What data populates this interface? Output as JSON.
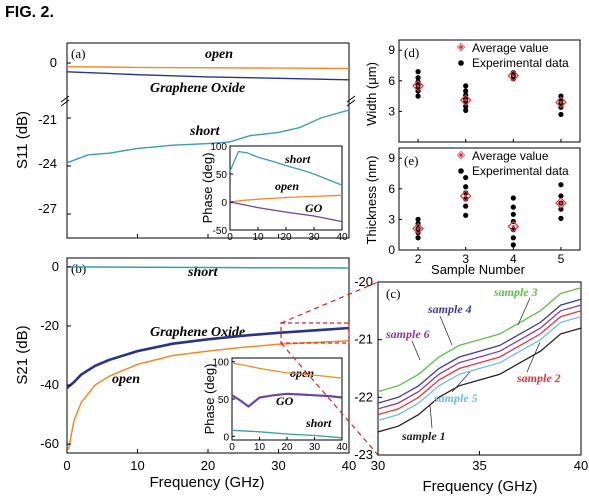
{
  "figure": {
    "title": "FIG. 2."
  },
  "colors": {
    "open": "#f28a2c",
    "graphene_oxide": "#2a3486",
    "short": "#3a9fa6",
    "go": "#6a44a6",
    "avg": "#e0383a",
    "exp": "#000000",
    "sample1": "#222222",
    "sample2": "#e0383a",
    "sample3": "#5cc04a",
    "sample4": "#3c3c9c",
    "sample5": "#6ac0dc",
    "sample6": "#8a3aa0",
    "zoom": "#e02020"
  },
  "chart_data": [
    {
      "id": "a",
      "panel_label": "(a)",
      "type": "line",
      "xlabel": "",
      "ylabel": "S11 (dB)",
      "xlim": [
        0,
        40
      ],
      "y_break": true,
      "y_ticks": [
        "0",
        "-21",
        "-24",
        "-27"
      ],
      "annotations": [
        "open",
        "Graphene Oxide",
        "short"
      ],
      "series": [
        {
          "name": "open",
          "x": [
            0,
            5,
            10,
            20,
            30,
            40
          ],
          "y": [
            -0.5,
            -0.55,
            -0.6,
            -0.65,
            -0.7,
            -0.75
          ]
        },
        {
          "name": "Graphene Oxide",
          "x": [
            0,
            5,
            10,
            20,
            30,
            40
          ],
          "y": [
            -1.2,
            -1.4,
            -1.6,
            -1.9,
            -2.1,
            -2.3
          ]
        },
        {
          "name": "short",
          "x": [
            0,
            3,
            6,
            10,
            15,
            20,
            23,
            26,
            30,
            33,
            36,
            40
          ],
          "y": [
            -23.8,
            -23.3,
            -23.2,
            -22.9,
            -22.7,
            -22.6,
            -22.5,
            -22.1,
            -21.9,
            -21.6,
            -21.0,
            -20.5
          ]
        }
      ],
      "inset": {
        "type": "line",
        "xlabel": "",
        "ylabel": "Phase (deg)",
        "xlim": [
          0,
          40
        ],
        "ylim": [
          -50,
          100
        ],
        "x_ticks": [
          0,
          10,
          20,
          30,
          40
        ],
        "y_ticks": [
          -50,
          0,
          50,
          100
        ],
        "annotations": [
          "short",
          "open",
          "GO"
        ],
        "series": [
          {
            "name": "short",
            "x": [
              0,
              3,
              6,
              10,
              15,
              20,
              25,
              30,
              35,
              40
            ],
            "y": [
              55,
              90,
              88,
              80,
              73,
              65,
              58,
              50,
              40,
              30
            ]
          },
          {
            "name": "open",
            "x": [
              0,
              5,
              10,
              20,
              30,
              40
            ],
            "y": [
              0,
              3,
              5,
              8,
              10,
              12
            ]
          },
          {
            "name": "GO",
            "x": [
              0,
              5,
              10,
              20,
              30,
              40
            ],
            "y": [
              0,
              -5,
              -10,
              -18,
              -25,
              -35
            ]
          }
        ]
      }
    },
    {
      "id": "b",
      "panel_label": "(b)",
      "type": "line",
      "xlabel": "Frequency (GHz)",
      "ylabel": "S21 (dB)",
      "xlim": [
        0,
        40
      ],
      "ylim": [
        -63,
        3
      ],
      "x_ticks": [
        0,
        10,
        20,
        30,
        40
      ],
      "y_ticks": [
        0,
        -20,
        -40,
        -60
      ],
      "annotations": [
        "short",
        "Graphene Oxide",
        "open"
      ],
      "series": [
        {
          "name": "short",
          "x": [
            0,
            10,
            20,
            30,
            40
          ],
          "y": [
            0,
            -0.1,
            -0.2,
            -0.3,
            -0.4
          ]
        },
        {
          "name": "Graphene Oxide",
          "x": [
            0,
            1,
            2,
            4,
            6,
            10,
            15,
            20,
            25,
            30,
            35,
            40
          ],
          "y": [
            -41,
            -39,
            -36.5,
            -33.5,
            -31.5,
            -28.5,
            -26,
            -24.5,
            -23.3,
            -22.3,
            -21.5,
            -20.7
          ]
        },
        {
          "name": "open",
          "x": [
            0.2,
            1,
            2,
            4,
            6,
            10,
            15,
            20,
            25,
            30,
            35,
            40
          ],
          "y": [
            -62,
            -52,
            -46,
            -40,
            -37,
            -33,
            -30,
            -28.5,
            -27.2,
            -26.2,
            -25.6,
            -25
          ]
        }
      ],
      "inset": {
        "type": "line",
        "xlabel": "",
        "ylabel": "Phase (deg)",
        "xlim": [
          0,
          40
        ],
        "ylim": [
          -5,
          105
        ],
        "x_ticks": [
          0,
          10,
          20,
          30,
          40
        ],
        "y_ticks": [
          0,
          50,
          100
        ],
        "annotations": [
          "open",
          "GO",
          "short"
        ],
        "series": [
          {
            "name": "open",
            "x": [
              0,
              5,
              10,
              20,
              30,
              40
            ],
            "y": [
              98,
              95,
              91,
              85,
              82,
              78
            ]
          },
          {
            "name": "GO",
            "x": [
              0,
              3,
              6,
              10,
              15,
              20,
              25,
              30,
              35,
              40
            ],
            "y": [
              55,
              48,
              40,
              52,
              55,
              57,
              56,
              55,
              54,
              52
            ]
          },
          {
            "name": "short",
            "x": [
              0,
              10,
              20,
              30,
              40
            ],
            "y": [
              8,
              6,
              3,
              1,
              -2
            ]
          }
        ]
      }
    },
    {
      "id": "c",
      "panel_label": "(c)",
      "type": "line",
      "xlabel": "Frequency (GHz)",
      "ylabel": "",
      "xlim": [
        30,
        40
      ],
      "ylim": [
        -23,
        -20
      ],
      "x_ticks": [
        30,
        35,
        40
      ],
      "y_ticks": [
        -20,
        -21,
        -22,
        -23
      ],
      "series": [
        {
          "name": "sample 1",
          "x": [
            30,
            31,
            32,
            33,
            34,
            35,
            36,
            37,
            38,
            39,
            40
          ],
          "y": [
            -22.6,
            -22.5,
            -22.3,
            -22.0,
            -21.8,
            -21.7,
            -21.6,
            -21.4,
            -21.2,
            -20.9,
            -20.8
          ]
        },
        {
          "name": "sample 2",
          "x": [
            30,
            31,
            32,
            33,
            34,
            35,
            36,
            37,
            38,
            39,
            40
          ],
          "y": [
            -22.3,
            -22.2,
            -22.0,
            -21.7,
            -21.5,
            -21.4,
            -21.3,
            -21.1,
            -20.9,
            -20.6,
            -20.5
          ]
        },
        {
          "name": "sample 5",
          "x": [
            30,
            31,
            32,
            33,
            34,
            35,
            36,
            37,
            38,
            39,
            40
          ],
          "y": [
            -22.4,
            -22.3,
            -22.1,
            -21.8,
            -21.6,
            -21.5,
            -21.4,
            -21.2,
            -21.0,
            -20.7,
            -20.6
          ]
        },
        {
          "name": "sample 6",
          "x": [
            30,
            31,
            32,
            33,
            34,
            35,
            36,
            37,
            38,
            39,
            40
          ],
          "y": [
            -22.2,
            -22.1,
            -21.9,
            -21.6,
            -21.4,
            -21.3,
            -21.2,
            -21.0,
            -20.8,
            -20.5,
            -20.4
          ]
        },
        {
          "name": "sample 4",
          "x": [
            30,
            31,
            32,
            33,
            34,
            35,
            36,
            37,
            38,
            39,
            40
          ],
          "y": [
            -22.1,
            -22.0,
            -21.8,
            -21.5,
            -21.3,
            -21.2,
            -21.1,
            -20.9,
            -20.7,
            -20.4,
            -20.3
          ]
        },
        {
          "name": "sample 3",
          "x": [
            30,
            31,
            32,
            33,
            34,
            35,
            36,
            37,
            38,
            39,
            40
          ],
          "y": [
            -21.9,
            -21.8,
            -21.6,
            -21.3,
            -21.1,
            -21.0,
            -20.9,
            -20.7,
            -20.5,
            -20.2,
            -20.1
          ]
        }
      ]
    },
    {
      "id": "d",
      "panel_label": "(d)",
      "type": "scatter",
      "xlabel": "",
      "ylabel": "Width (μm)",
      "xlim": [
        1.6,
        5.4
      ],
      "ylim": [
        0,
        10
      ],
      "x_ticks": [
        2,
        3,
        4,
        5
      ],
      "y_ticks": [
        3,
        6,
        9
      ],
      "legend": [
        "Average value",
        "Experimental data"
      ],
      "average": [
        {
          "x": 2,
          "y": 5.5
        },
        {
          "x": 3,
          "y": 4.1
        },
        {
          "x": 4,
          "y": 6.5
        },
        {
          "x": 5,
          "y": 3.9
        }
      ],
      "experimental": [
        {
          "x": 2,
          "y": 4.5
        },
        {
          "x": 2,
          "y": 5.0
        },
        {
          "x": 2,
          "y": 5.3
        },
        {
          "x": 2,
          "y": 5.6
        },
        {
          "x": 2,
          "y": 5.9
        },
        {
          "x": 2,
          "y": 6.3
        },
        {
          "x": 2,
          "y": 6.9
        },
        {
          "x": 3,
          "y": 3.1
        },
        {
          "x": 3,
          "y": 3.5
        },
        {
          "x": 3,
          "y": 3.9
        },
        {
          "x": 3,
          "y": 4.2
        },
        {
          "x": 3,
          "y": 4.6
        },
        {
          "x": 3,
          "y": 5.0
        },
        {
          "x": 3,
          "y": 5.5
        },
        {
          "x": 4,
          "y": 6.2
        },
        {
          "x": 4,
          "y": 6.5
        },
        {
          "x": 4,
          "y": 6.8
        },
        {
          "x": 5,
          "y": 2.7
        },
        {
          "x": 5,
          "y": 3.4
        },
        {
          "x": 5,
          "y": 3.8
        },
        {
          "x": 5,
          "y": 4.1
        },
        {
          "x": 5,
          "y": 4.5
        }
      ]
    },
    {
      "id": "e",
      "panel_label": "(e)",
      "type": "scatter",
      "xlabel": "Sample Number",
      "ylabel": "Thickness (nm)",
      "xlim": [
        1.6,
        5.4
      ],
      "ylim": [
        0,
        10
      ],
      "x_ticks": [
        2,
        3,
        4,
        5
      ],
      "y_ticks": [
        0,
        3,
        6,
        9
      ],
      "legend": [
        "Average value",
        "Experimental data"
      ],
      "average": [
        {
          "x": 2,
          "y": 2.1
        },
        {
          "x": 3,
          "y": 5.3
        },
        {
          "x": 4,
          "y": 2.3
        },
        {
          "x": 5,
          "y": 4.6
        }
      ],
      "experimental": [
        {
          "x": 2,
          "y": 1.2
        },
        {
          "x": 2,
          "y": 1.7
        },
        {
          "x": 2,
          "y": 2.1
        },
        {
          "x": 2,
          "y": 2.6
        },
        {
          "x": 2,
          "y": 3.0
        },
        {
          "x": 3,
          "y": 3.4
        },
        {
          "x": 3,
          "y": 4.3
        },
        {
          "x": 3,
          "y": 5.0
        },
        {
          "x": 3,
          "y": 5.6
        },
        {
          "x": 3,
          "y": 6.2
        },
        {
          "x": 3,
          "y": 7.1
        },
        {
          "x": 4,
          "y": 0.5
        },
        {
          "x": 4,
          "y": 1.2
        },
        {
          "x": 4,
          "y": 2.0
        },
        {
          "x": 4,
          "y": 2.8
        },
        {
          "x": 4,
          "y": 3.5
        },
        {
          "x": 4,
          "y": 4.2
        },
        {
          "x": 4,
          "y": 5.1
        },
        {
          "x": 5,
          "y": 3.1
        },
        {
          "x": 5,
          "y": 4.0
        },
        {
          "x": 5,
          "y": 4.6
        },
        {
          "x": 5,
          "y": 5.3
        },
        {
          "x": 5,
          "y": 6.4
        }
      ]
    }
  ]
}
